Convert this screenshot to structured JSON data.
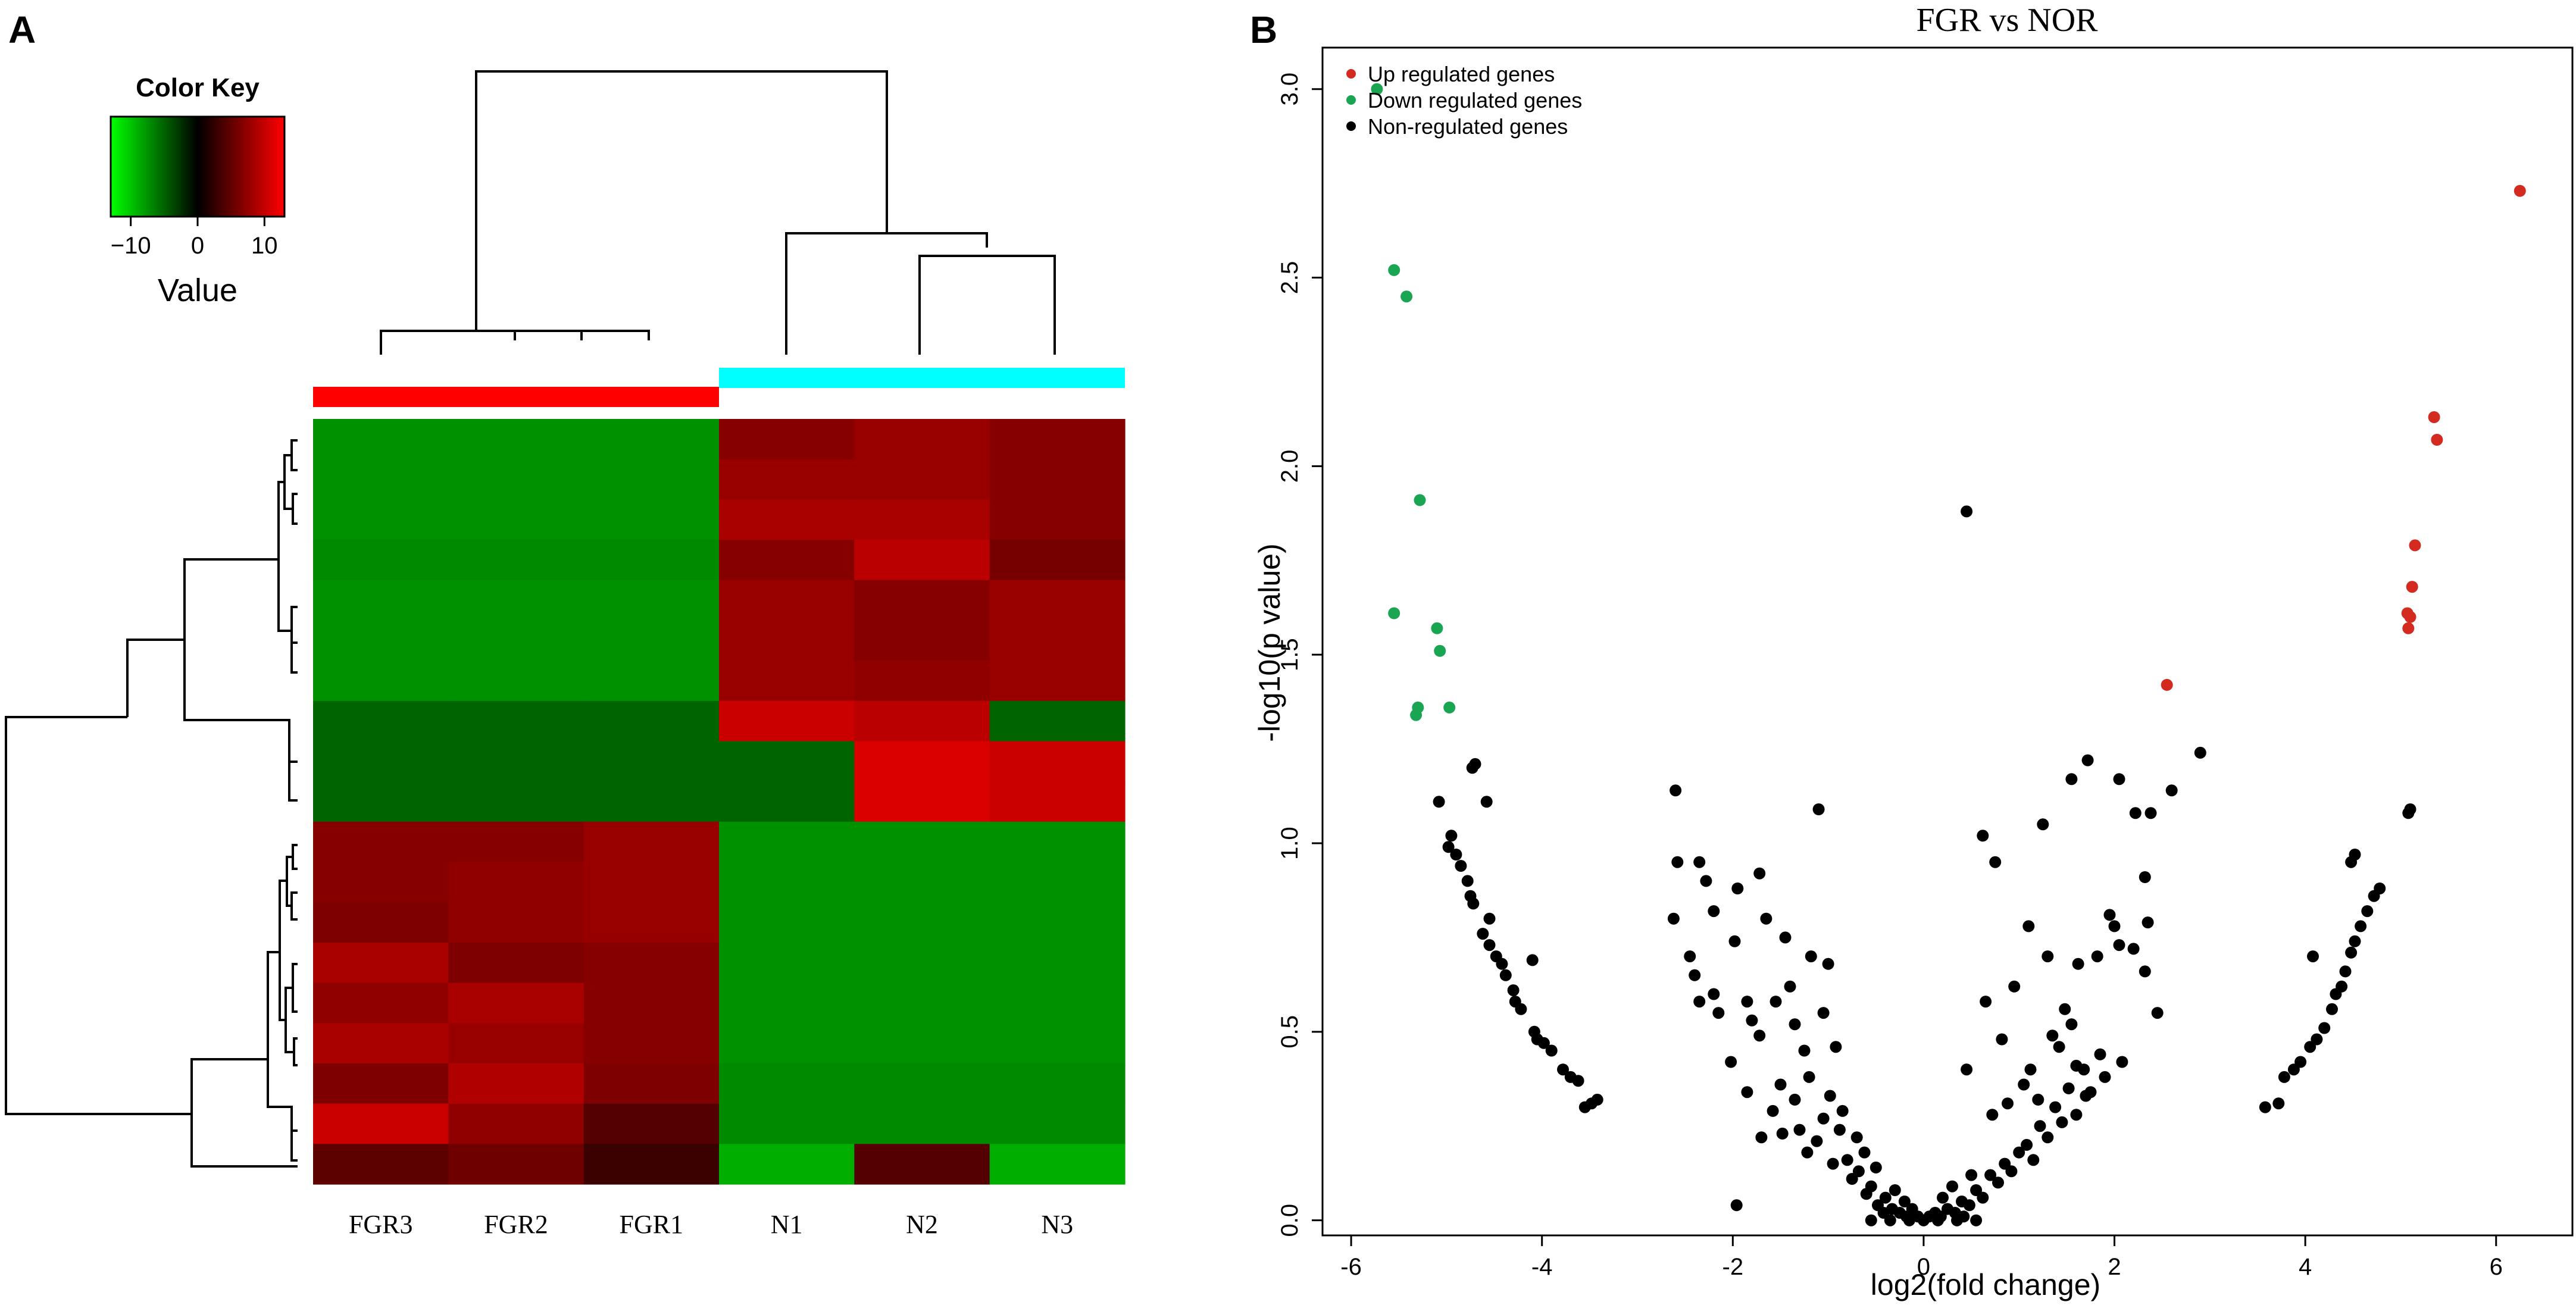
{
  "panels": {
    "a_label": "A",
    "b_label": "B"
  },
  "colors": {
    "up": "#d42b20",
    "down": "#1aa553",
    "non": "#000000",
    "group_fgr": "#ff0000",
    "group_nor": "#00ffff",
    "heat_low": "#00ff00",
    "heat_mid": "#000000",
    "heat_high": "#ff0000"
  },
  "chart_data": [
    {
      "type": "heatmap",
      "title": "",
      "color_key": {
        "title": "Color Key",
        "label": "Value",
        "range": [
          -13,
          13
        ],
        "tick_values": [
          -10,
          0,
          10
        ],
        "tick_labels": [
          "−10",
          "0",
          "10"
        ]
      },
      "columns": [
        "FGR3",
        "FGR2",
        "FGR1",
        "N1",
        "N2",
        "N3"
      ],
      "column_groups": [
        "FGR",
        "FGR",
        "FGR",
        "NOR",
        "NOR",
        "NOR"
      ],
      "values": [
        [
          -10,
          -10,
          -10,
          8,
          9,
          8
        ],
        [
          -10,
          -10,
          -10,
          9,
          9,
          8
        ],
        [
          -10,
          -10,
          -10,
          10,
          10,
          8
        ],
        [
          -9.5,
          -9.5,
          -9.5,
          8,
          11,
          7
        ],
        [
          -10,
          -10,
          -10,
          9,
          8,
          9
        ],
        [
          -10,
          -10,
          -10,
          9,
          8,
          9
        ],
        [
          -10,
          -10,
          -10,
          9,
          8.5,
          9
        ],
        [
          -7,
          -7,
          -7,
          12,
          11,
          -7
        ],
        [
          -7,
          -7,
          -7,
          -7,
          13,
          12
        ],
        [
          -7,
          -7,
          -7,
          -7,
          13,
          12
        ],
        [
          8,
          8,
          9,
          -10,
          -10,
          -10
        ],
        [
          8,
          8.5,
          9,
          -10,
          -10,
          -10
        ],
        [
          7.5,
          8.5,
          9,
          -10,
          -10,
          -10
        ],
        [
          10,
          7.5,
          8,
          -10,
          -10,
          -10
        ],
        [
          8.5,
          10,
          8,
          -10,
          -10,
          -10
        ],
        [
          10,
          9,
          8,
          -10,
          -10,
          -10
        ],
        [
          7.5,
          10.5,
          7.5,
          -9.5,
          -9.5,
          -9.5
        ],
        [
          12,
          8.5,
          5,
          -9.5,
          -9.5,
          -9.5
        ],
        [
          5.5,
          6.5,
          3.5,
          -12,
          5,
          -12
        ]
      ]
    },
    {
      "type": "scatter",
      "title": "FGR vs NOR",
      "xlabel": "log2(fold change)",
      "ylabel": "-log10(p value)",
      "xlim": [
        -6.3,
        6.8
      ],
      "ylim": [
        -0.04,
        3.11
      ],
      "xticks": [
        -6,
        -4,
        -2,
        0,
        2,
        4,
        6
      ],
      "yticks": [
        0.0,
        0.5,
        1.0,
        1.5,
        2.0,
        2.5,
        3.0
      ],
      "ytick_labels": [
        "0.0",
        "0.5",
        "1.0",
        "1.5",
        "2.0",
        "2.5",
        "3.0"
      ],
      "legend": {
        "position": "top-left",
        "entries": [
          {
            "label": "Up regulated genes",
            "series": "up"
          },
          {
            "label": "Down regulated genes",
            "series": "down"
          },
          {
            "label": "Non-regulated genes",
            "series": "non"
          }
        ]
      },
      "series": [
        {
          "name": "Up regulated genes",
          "key": "up",
          "points": [
            [
              6.25,
              2.73
            ],
            [
              5.35,
              2.13
            ],
            [
              5.38,
              2.07
            ],
            [
              5.15,
              1.79
            ],
            [
              5.12,
              1.68
            ],
            [
              5.07,
              1.61
            ],
            [
              5.1,
              1.6
            ],
            [
              5.08,
              1.57
            ],
            [
              2.55,
              1.42
            ]
          ]
        },
        {
          "name": "Down regulated genes",
          "key": "down",
          "points": [
            [
              -5.73,
              3.0
            ],
            [
              -5.55,
              2.52
            ],
            [
              -5.42,
              2.45
            ],
            [
              -5.28,
              1.91
            ],
            [
              -5.55,
              1.61
            ],
            [
              -5.1,
              1.57
            ],
            [
              -5.07,
              1.51
            ],
            [
              -4.97,
              1.36
            ],
            [
              -5.3,
              1.36
            ],
            [
              -5.32,
              1.34
            ]
          ]
        },
        {
          "name": "Non-regulated genes",
          "key": "non",
          "points": [
            [
              0.45,
              1.88
            ],
            [
              -4.7,
              1.21
            ],
            [
              -4.73,
              1.2
            ],
            [
              -4.58,
              1.11
            ],
            [
              -5.08,
              1.11
            ],
            [
              -4.95,
              1.02
            ],
            [
              -4.98,
              0.99
            ],
            [
              -4.9,
              0.97
            ],
            [
              -4.85,
              0.94
            ],
            [
              -4.78,
              0.9
            ],
            [
              -4.75,
              0.86
            ],
            [
              -4.72,
              0.84
            ],
            [
              -4.55,
              0.8
            ],
            [
              -4.62,
              0.76
            ],
            [
              -4.55,
              0.73
            ],
            [
              -4.48,
              0.7
            ],
            [
              -4.42,
              0.68
            ],
            [
              -4.38,
              0.65
            ],
            [
              -4.3,
              0.61
            ],
            [
              -4.28,
              0.58
            ],
            [
              -4.22,
              0.56
            ],
            [
              -4.08,
              0.5
            ],
            [
              -4.05,
              0.48
            ],
            [
              -3.98,
              0.47
            ],
            [
              -3.9,
              0.45
            ],
            [
              -3.78,
              0.4
            ],
            [
              -3.7,
              0.38
            ],
            [
              -3.62,
              0.37
            ],
            [
              -3.55,
              0.3
            ],
            [
              -3.48,
              0.31
            ],
            [
              -3.42,
              0.32
            ],
            [
              -4.1,
              0.69
            ],
            [
              3.58,
              0.3
            ],
            [
              3.72,
              0.31
            ],
            [
              3.78,
              0.38
            ],
            [
              3.88,
              0.4
            ],
            [
              3.95,
              0.42
            ],
            [
              4.05,
              0.46
            ],
            [
              4.12,
              0.48
            ],
            [
              4.2,
              0.51
            ],
            [
              4.28,
              0.56
            ],
            [
              4.32,
              0.6
            ],
            [
              4.38,
              0.62
            ],
            [
              4.42,
              0.66
            ],
            [
              4.48,
              0.71
            ],
            [
              4.52,
              0.74
            ],
            [
              4.58,
              0.78
            ],
            [
              4.65,
              0.82
            ],
            [
              4.72,
              0.86
            ],
            [
              4.78,
              0.88
            ],
            [
              4.48,
              0.95
            ],
            [
              4.52,
              0.97
            ],
            [
              4.08,
              0.7
            ],
            [
              5.08,
              1.08
            ],
            [
              5.1,
              1.09
            ],
            [
              -2.6,
              1.14
            ],
            [
              -1.1,
              1.09
            ],
            [
              -2.58,
              0.95
            ],
            [
              -2.35,
              0.95
            ],
            [
              -2.28,
              0.9
            ],
            [
              -1.95,
              0.88
            ],
            [
              -1.72,
              0.92
            ],
            [
              -1.65,
              0.8
            ],
            [
              -1.45,
              0.75
            ],
            [
              -1.18,
              0.7
            ],
            [
              -1.0,
              0.68
            ],
            [
              -2.62,
              0.8
            ],
            [
              -2.45,
              0.7
            ],
            [
              -2.35,
              0.58
            ],
            [
              -2.15,
              0.55
            ],
            [
              -2.2,
              0.6
            ],
            [
              -1.8,
              0.53
            ],
            [
              -1.55,
              0.58
            ],
            [
              -1.35,
              0.52
            ],
            [
              1.25,
              1.05
            ],
            [
              0.62,
              1.02
            ],
            [
              0.75,
              0.95
            ],
            [
              1.55,
              1.17
            ],
            [
              1.72,
              1.22
            ],
            [
              2.05,
              1.17
            ],
            [
              2.22,
              1.08
            ],
            [
              2.38,
              1.08
            ],
            [
              2.6,
              1.14
            ],
            [
              2.9,
              1.24
            ],
            [
              2.32,
              0.91
            ],
            [
              2.05,
              0.73
            ],
            [
              2.2,
              0.72
            ],
            [
              2.35,
              0.79
            ],
            [
              2.45,
              0.55
            ],
            [
              2.32,
              0.66
            ],
            [
              1.82,
              0.7
            ],
            [
              1.95,
              0.81
            ],
            [
              2.0,
              0.78
            ],
            [
              1.62,
              0.68
            ],
            [
              1.48,
              0.56
            ],
            [
              1.35,
              0.49
            ],
            [
              -2.4,
              0.65
            ],
            [
              -2.2,
              0.82
            ],
            [
              -1.98,
              0.74
            ],
            [
              -2.02,
              0.42
            ],
            [
              -1.85,
              0.58
            ],
            [
              -1.72,
              0.49
            ],
            [
              -1.5,
              0.36
            ],
            [
              -1.4,
              0.62
            ],
            [
              -1.25,
              0.45
            ],
            [
              -1.05,
              0.55
            ],
            [
              -0.92,
              0.46
            ],
            [
              1.1,
              0.78
            ],
            [
              0.95,
              0.62
            ],
            [
              0.82,
              0.48
            ],
            [
              0.65,
              0.58
            ],
            [
              0.45,
              0.4
            ],
            [
              1.3,
              0.7
            ],
            [
              1.12,
              0.4
            ],
            [
              1.6,
              0.41
            ],
            [
              1.7,
              0.33
            ],
            [
              1.9,
              0.38
            ],
            [
              2.08,
              0.42
            ],
            [
              -1.96,
              0.04
            ],
            [
              -1.85,
              0.34
            ],
            [
              -1.7,
              0.22
            ],
            [
              -1.58,
              0.29
            ],
            [
              -1.48,
              0.23
            ],
            [
              -1.3,
              0.24
            ],
            [
              -1.22,
              0.18
            ],
            [
              -1.12,
              0.21
            ],
            [
              -1.05,
              0.27
            ],
            [
              -0.95,
              0.15
            ],
            [
              -0.88,
              0.24
            ],
            [
              -0.8,
              0.16
            ],
            [
              -0.75,
              0.11
            ],
            [
              -0.68,
              0.13
            ],
            [
              -0.6,
              0.07
            ],
            [
              -0.55,
              0.09
            ],
            [
              -0.48,
              0.04
            ],
            [
              -0.4,
              0.06
            ],
            [
              -0.33,
              0.03
            ],
            [
              -0.25,
              0.02
            ],
            [
              -0.18,
              0.01
            ],
            [
              -0.12,
              0.03
            ],
            [
              -0.06,
              0.01
            ],
            [
              0.06,
              0.01
            ],
            [
              0.12,
              0.02
            ],
            [
              0.18,
              0.01
            ],
            [
              0.25,
              0.03
            ],
            [
              0.33,
              0.02
            ],
            [
              0.4,
              0.05
            ],
            [
              0.48,
              0.04
            ],
            [
              0.55,
              0.08
            ],
            [
              0.62,
              0.06
            ],
            [
              0.7,
              0.12
            ],
            [
              0.78,
              0.1
            ],
            [
              0.85,
              0.15
            ],
            [
              0.92,
              0.13
            ],
            [
              1.0,
              0.18
            ],
            [
              1.08,
              0.2
            ],
            [
              1.15,
              0.16
            ],
            [
              1.22,
              0.25
            ],
            [
              1.3,
              0.22
            ],
            [
              1.38,
              0.3
            ],
            [
              1.45,
              0.26
            ],
            [
              1.52,
              0.35
            ],
            [
              1.6,
              0.28
            ],
            [
              1.68,
              0.4
            ],
            [
              1.75,
              0.34
            ],
            [
              1.85,
              0.44
            ],
            [
              -1.35,
              0.32
            ],
            [
              -1.2,
              0.38
            ],
            [
              -0.98,
              0.33
            ],
            [
              -0.85,
              0.29
            ],
            [
              -0.7,
              0.22
            ],
            [
              -0.62,
              0.18
            ],
            [
              0.72,
              0.28
            ],
            [
              0.88,
              0.31
            ],
            [
              1.05,
              0.36
            ],
            [
              1.2,
              0.32
            ],
            [
              1.42,
              0.46
            ],
            [
              1.55,
              0.52
            ],
            [
              -0.3,
              0.08
            ],
            [
              -0.2,
              0.05
            ],
            [
              0.2,
              0.06
            ],
            [
              0.3,
              0.09
            ],
            [
              -0.5,
              0.14
            ],
            [
              0.5,
              0.12
            ],
            [
              -0.42,
              0.02
            ],
            [
              0.42,
              0.01
            ],
            [
              -0.15,
              0.0
            ],
            [
              0.0,
              0.0
            ],
            [
              0.15,
              0.0
            ],
            [
              -0.35,
              0.0
            ],
            [
              0.35,
              0.0
            ],
            [
              -0.55,
              0.0
            ],
            [
              0.55,
              0.0
            ]
          ]
        }
      ]
    }
  ],
  "dendrogram_note": ""
}
